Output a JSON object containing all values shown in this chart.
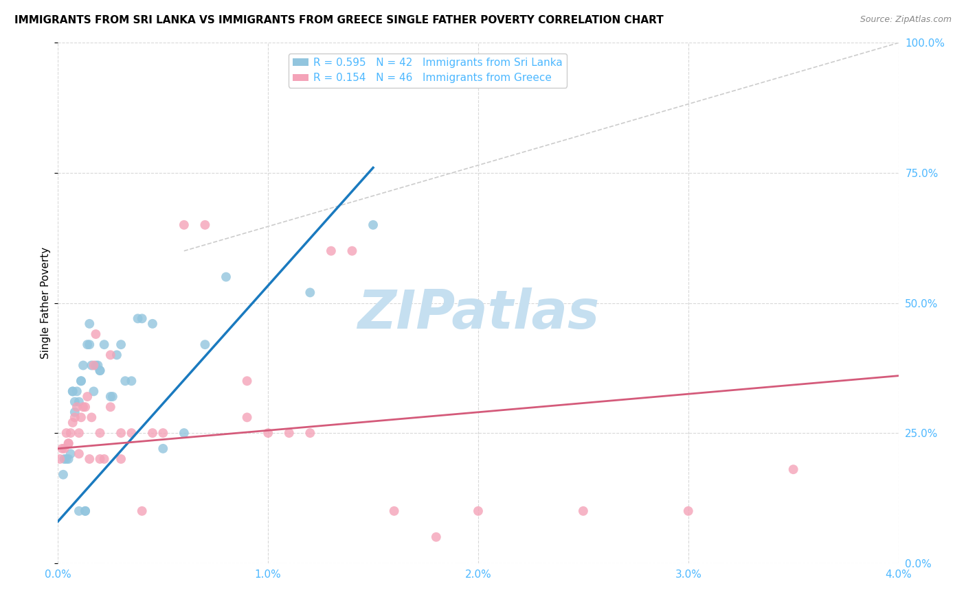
{
  "title": "IMMIGRANTS FROM SRI LANKA VS IMMIGRANTS FROM GREECE SINGLE FATHER POVERTY CORRELATION CHART",
  "source": "Source: ZipAtlas.com",
  "ylabel": "Single Father Poverty",
  "legend_label1": "Immigrants from Sri Lanka",
  "legend_label2": "Immigrants from Greece",
  "R1": 0.595,
  "N1": 42,
  "R2": 0.154,
  "N2": 46,
  "color1": "#92c5de",
  "color2": "#f4a3b8",
  "trend_color1": "#1a7abf",
  "trend_color2": "#d45a7a",
  "xmin": 0.0,
  "xmax": 0.04,
  "ymin": 0.0,
  "ymax": 1.0,
  "scatter1_x": [
    0.00025,
    0.0003,
    0.0004,
    0.0005,
    0.0006,
    0.0007,
    0.0007,
    0.0008,
    0.0008,
    0.0009,
    0.001,
    0.001,
    0.0011,
    0.0011,
    0.0012,
    0.0013,
    0.0013,
    0.0014,
    0.0015,
    0.0015,
    0.0016,
    0.0017,
    0.0018,
    0.0019,
    0.002,
    0.002,
    0.0022,
    0.0025,
    0.0026,
    0.0028,
    0.003,
    0.0032,
    0.0035,
    0.0038,
    0.004,
    0.0045,
    0.005,
    0.006,
    0.007,
    0.008,
    0.012,
    0.015
  ],
  "scatter1_y": [
    0.17,
    0.2,
    0.2,
    0.2,
    0.21,
    0.33,
    0.33,
    0.29,
    0.31,
    0.33,
    0.1,
    0.31,
    0.35,
    0.35,
    0.38,
    0.1,
    0.1,
    0.42,
    0.42,
    0.46,
    0.38,
    0.33,
    0.38,
    0.38,
    0.37,
    0.37,
    0.42,
    0.32,
    0.32,
    0.4,
    0.42,
    0.35,
    0.35,
    0.47,
    0.47,
    0.46,
    0.22,
    0.25,
    0.42,
    0.55,
    0.52,
    0.65
  ],
  "scatter2_x": [
    0.0001,
    0.0002,
    0.0003,
    0.0004,
    0.0005,
    0.0005,
    0.0006,
    0.0007,
    0.0008,
    0.0009,
    0.001,
    0.001,
    0.0011,
    0.0012,
    0.0013,
    0.0014,
    0.0015,
    0.0016,
    0.0017,
    0.0018,
    0.002,
    0.002,
    0.0022,
    0.0025,
    0.0025,
    0.003,
    0.003,
    0.0035,
    0.004,
    0.0045,
    0.005,
    0.006,
    0.007,
    0.009,
    0.009,
    0.01,
    0.011,
    0.012,
    0.013,
    0.014,
    0.016,
    0.018,
    0.02,
    0.025,
    0.03,
    0.035
  ],
  "scatter2_y": [
    0.2,
    0.22,
    0.22,
    0.25,
    0.23,
    0.23,
    0.25,
    0.27,
    0.28,
    0.3,
    0.21,
    0.25,
    0.28,
    0.3,
    0.3,
    0.32,
    0.2,
    0.28,
    0.38,
    0.44,
    0.2,
    0.25,
    0.2,
    0.3,
    0.4,
    0.2,
    0.25,
    0.25,
    0.1,
    0.25,
    0.25,
    0.65,
    0.65,
    0.28,
    0.35,
    0.25,
    0.25,
    0.25,
    0.6,
    0.6,
    0.1,
    0.05,
    0.1,
    0.1,
    0.1,
    0.18
  ],
  "trend1_x": [
    0.0,
    0.015
  ],
  "trend1_y": [
    0.08,
    0.76
  ],
  "trend2_x": [
    0.0,
    0.04
  ],
  "trend2_y": [
    0.22,
    0.36
  ],
  "ref_line_x": [
    0.006,
    0.04
  ],
  "ref_line_y": [
    0.6,
    1.0
  ],
  "watermark": "ZIPatlas",
  "watermark_color": "#c5dff0",
  "background_color": "#ffffff",
  "grid_color": "#d8d8d8",
  "right_tick_color": "#4db8ff",
  "title_fontsize": 11,
  "source_fontsize": 9,
  "axis_label_fontsize": 11,
  "tick_fontsize": 11
}
